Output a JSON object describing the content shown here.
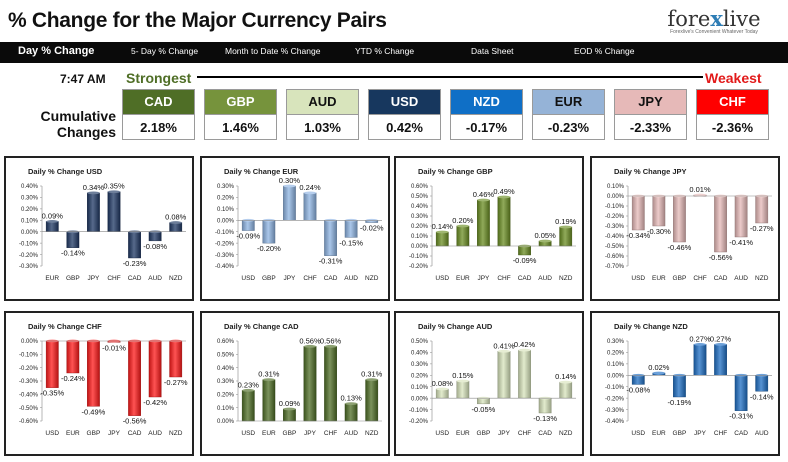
{
  "header": {
    "title": "% Change for the Major Currency Pairs"
  },
  "logo": {
    "name_a": "fore",
    "name_x": "x",
    "name_b": "live",
    "tagline": "Forexlive's Convenient Whatever Today"
  },
  "nav": {
    "items": [
      "Day % Change",
      "5- Day % Change",
      "Month to Date % Change",
      "YTD % Change",
      "Data Sheet",
      "EOD % Change"
    ]
  },
  "summary": {
    "time": "7:47 AM",
    "strongest": "Strongest",
    "weakest": "Weakest",
    "cum_label_1": "Cumulative",
    "cum_label_2": "Changes",
    "currencies": [
      {
        "name": "CAD",
        "value": "2.18%",
        "bg": "#4f6e26",
        "fg": "#ffffff"
      },
      {
        "name": "GBP",
        "value": "1.46%",
        "bg": "#76933c",
        "fg": "#ffffff"
      },
      {
        "name": "AUD",
        "value": "1.03%",
        "bg": "#d8e4bc",
        "fg": "#111111"
      },
      {
        "name": "USD",
        "value": "0.42%",
        "bg": "#17375e",
        "fg": "#ffffff"
      },
      {
        "name": "NZD",
        "value": "-0.17%",
        "bg": "#0f6fc6",
        "fg": "#ffffff"
      },
      {
        "name": "EUR",
        "value": "-0.23%",
        "bg": "#95b3d7",
        "fg": "#111111"
      },
      {
        "name": "JPY",
        "value": "-2.33%",
        "bg": "#e6b9b8",
        "fg": "#111111"
      },
      {
        "name": "CHF",
        "value": "-2.36%",
        "bg": "#ff0000",
        "fg": "#ffffff"
      }
    ]
  },
  "chart_data": [
    {
      "type": "bar",
      "title": "Daily % Change USD",
      "color": "#1f3864",
      "categories": [
        "EUR",
        "GBP",
        "JPY",
        "CHF",
        "CAD",
        "AUD",
        "NZD"
      ],
      "values": [
        0.09,
        -0.14,
        0.34,
        0.35,
        -0.23,
        -0.08,
        0.08
      ],
      "labels": [
        "0.09%",
        "-0.14%",
        "0.34%",
        "0.35%",
        "-0.23%",
        "-0.08%",
        "0.08%"
      ],
      "ylim": [
        -0.3,
        0.4
      ],
      "yticks": [
        0.4,
        0.3,
        0.2,
        0.1,
        0,
        -0.1,
        -0.2,
        -0.3
      ],
      "ytick_labels": [
        "0.40%",
        "0.30%",
        "0.20%",
        "0.10%",
        "0.00%",
        "-0.10%",
        "-0.20%",
        "-0.30%"
      ]
    },
    {
      "type": "bar",
      "title": "Daily % Change EUR",
      "color": "#8eb4e3",
      "categories": [
        "USD",
        "GBP",
        "JPY",
        "CHF",
        "CAD",
        "AUD",
        "NZD"
      ],
      "values": [
        -0.09,
        -0.2,
        0.3,
        0.24,
        -0.31,
        -0.15,
        -0.02
      ],
      "labels": [
        "-0.09%",
        "-0.20%",
        "0.30%",
        "0.24%",
        "-0.31%",
        "-0.15%",
        "-0.02%"
      ],
      "ylim": [
        -0.4,
        0.3
      ],
      "yticks": [
        0.3,
        0.2,
        0.1,
        0,
        -0.1,
        -0.2,
        -0.3,
        -0.4
      ],
      "ytick_labels": [
        "0.30%",
        "0.20%",
        "0.10%",
        "0.00%",
        "-0.10%",
        "-0.20%",
        "-0.30%",
        "-0.40%"
      ]
    },
    {
      "type": "bar",
      "title": "Daily % Change GBP",
      "color": "#6b8e23",
      "categories": [
        "USD",
        "EUR",
        "JPY",
        "CHF",
        "CAD",
        "AUD",
        "NZD"
      ],
      "values": [
        0.14,
        0.2,
        0.46,
        0.49,
        -0.09,
        0.05,
        0.19
      ],
      "labels": [
        "0.14%",
        "0.20%",
        "0.46%",
        "0.49%",
        "-0.09%",
        "0.05%",
        "0.19%"
      ],
      "ylim": [
        -0.2,
        0.6
      ],
      "yticks": [
        0.6,
        0.5,
        0.4,
        0.3,
        0.2,
        0.1,
        0,
        -0.1,
        -0.2
      ],
      "ytick_labels": [
        "0.60%",
        "0.50%",
        "0.40%",
        "0.30%",
        "0.20%",
        "0.10%",
        "0.00%",
        "-0.10%",
        "-0.20%"
      ]
    },
    {
      "type": "bar",
      "title": "Daily % Change JPY",
      "color": "#e6b9b8",
      "categories": [
        "USD",
        "EUR",
        "GBP",
        "CHF",
        "CAD",
        "AUD",
        "NZD"
      ],
      "values": [
        -0.34,
        -0.3,
        -0.46,
        0.01,
        -0.56,
        -0.41,
        -0.27
      ],
      "labels": [
        "-0.34%",
        "-0.30%",
        "-0.46%",
        "0.01%",
        "-0.56%",
        "-0.41%",
        "-0.27%"
      ],
      "ylim": [
        -0.7,
        0.1
      ],
      "yticks": [
        0.1,
        0,
        -0.1,
        -0.2,
        -0.3,
        -0.4,
        -0.5,
        -0.6,
        -0.7
      ],
      "ytick_labels": [
        "0.10%",
        "0.00%",
        "-0.10%",
        "-0.20%",
        "-0.30%",
        "-0.40%",
        "-0.50%",
        "-0.60%",
        "-0.70%"
      ]
    },
    {
      "type": "bar",
      "title": "Daily % Change CHF",
      "color": "#ff1a1a",
      "categories": [
        "USD",
        "EUR",
        "GBP",
        "JPY",
        "CAD",
        "AUD",
        "NZD"
      ],
      "values": [
        -0.35,
        -0.24,
        -0.49,
        -0.01,
        -0.56,
        -0.42,
        -0.27
      ],
      "labels": [
        "-0.35%",
        "-0.24%",
        "-0.49%",
        "-0.01%",
        "-0.56%",
        "-0.42%",
        "-0.27%"
      ],
      "ylim": [
        -0.6,
        0
      ],
      "yticks": [
        0,
        -0.1,
        -0.2,
        -0.3,
        -0.4,
        -0.5,
        -0.6
      ],
      "ytick_labels": [
        "0.00%",
        "-0.10%",
        "-0.20%",
        "-0.30%",
        "-0.40%",
        "-0.50%",
        "-0.60%"
      ]
    },
    {
      "type": "bar",
      "title": "Daily % Change CAD",
      "color": "#4f6e26",
      "categories": [
        "USD",
        "EUR",
        "GBP",
        "JPY",
        "CHF",
        "AUD",
        "NZD"
      ],
      "values": [
        0.23,
        0.31,
        0.09,
        0.56,
        0.56,
        0.13,
        0.31
      ],
      "labels": [
        "0.23%",
        "0.31%",
        "0.09%",
        "0.56%",
        "0.56%",
        "0.13%",
        "0.31%"
      ],
      "ylim": [
        0,
        0.6
      ],
      "yticks": [
        0.6,
        0.5,
        0.4,
        0.3,
        0.2,
        0.1,
        0
      ],
      "ytick_labels": [
        "0.60%",
        "0.50%",
        "0.40%",
        "0.30%",
        "0.20%",
        "0.10%",
        "0.00%"
      ]
    },
    {
      "type": "bar",
      "title": "Daily % Change AUD",
      "color": "#d8e4bc",
      "categories": [
        "USD",
        "EUR",
        "GBP",
        "JPY",
        "CHF",
        "CAD",
        "NZD"
      ],
      "values": [
        0.08,
        0.15,
        -0.05,
        0.41,
        0.42,
        -0.13,
        0.14
      ],
      "labels": [
        "0.08%",
        "0.15%",
        "-0.05%",
        "0.41%",
        "0.42%",
        "-0.13%",
        "0.14%"
      ],
      "ylim": [
        -0.2,
        0.5
      ],
      "yticks": [
        0.5,
        0.4,
        0.3,
        0.2,
        0.1,
        0,
        -0.1,
        -0.2
      ],
      "ytick_labels": [
        "0.50%",
        "0.40%",
        "0.30%",
        "0.20%",
        "0.10%",
        "0.00%",
        "-0.10%",
        "-0.20%"
      ]
    },
    {
      "type": "bar",
      "title": "Daily % Change NZD",
      "color": "#1f6fc4",
      "categories": [
        "USD",
        "EUR",
        "GBP",
        "JPY",
        "CHF",
        "CAD",
        "AUD"
      ],
      "values": [
        -0.08,
        0.02,
        -0.19,
        0.27,
        0.27,
        -0.31,
        -0.14
      ],
      "labels": [
        "-0.08%",
        "0.02%",
        "-0.19%",
        "0.27%",
        "0.27%",
        "-0.31%",
        "-0.14%"
      ],
      "ylim": [
        -0.4,
        0.3
      ],
      "yticks": [
        0.3,
        0.2,
        0.1,
        0,
        -0.1,
        -0.2,
        -0.3,
        -0.4
      ],
      "ytick_labels": [
        "0.30%",
        "0.20%",
        "0.10%",
        "0.00%",
        "-0.10%",
        "-0.20%",
        "-0.30%",
        "-0.40%"
      ]
    }
  ]
}
